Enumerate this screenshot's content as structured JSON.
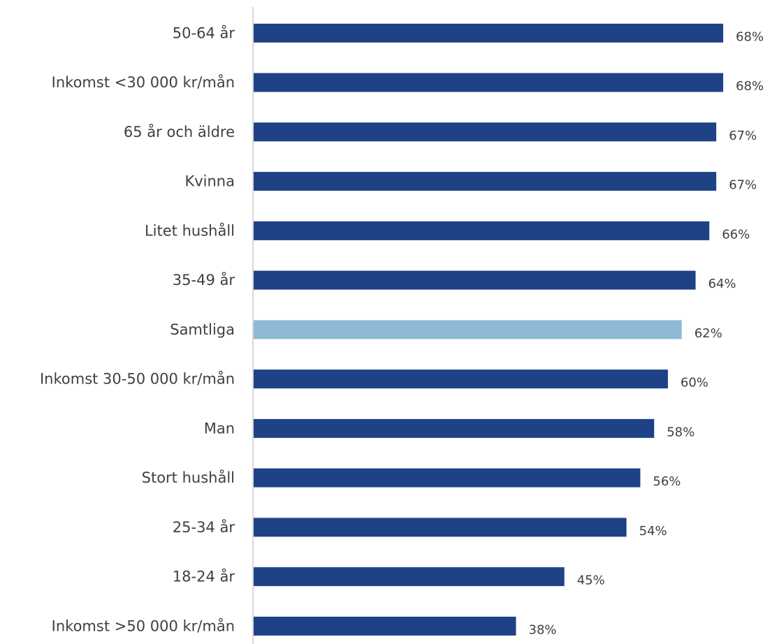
{
  "chart_data": {
    "type": "bar",
    "orientation": "horizontal",
    "categories": [
      "50-64 år",
      "Inkomst <30 000 kr/mån",
      "65 år och äldre",
      "Kvinna",
      "Litet hushåll",
      "35-49 år",
      "Samtliga",
      "Inkomst 30-50 000 kr/mån",
      "Man",
      "Stort hushåll",
      "25-34 år",
      "18-24 år",
      "Inkomst >50 000 kr/mån"
    ],
    "values": [
      68,
      68,
      67,
      67,
      66,
      64,
      62,
      60,
      58,
      56,
      54,
      45,
      38
    ],
    "value_labels": [
      "68%",
      "68%",
      "67%",
      "67%",
      "66%",
      "64%",
      "62%",
      "60%",
      "58%",
      "56%",
      "54%",
      "45%",
      "38%"
    ],
    "highlight_category": "Samtliga",
    "colors": {
      "bar": "#1f4287",
      "highlight": "#8db9d6",
      "axis": "#d9d9d9",
      "text": "#404040"
    },
    "xlim": [
      0,
      68
    ],
    "grid": false,
    "legend": "none"
  }
}
